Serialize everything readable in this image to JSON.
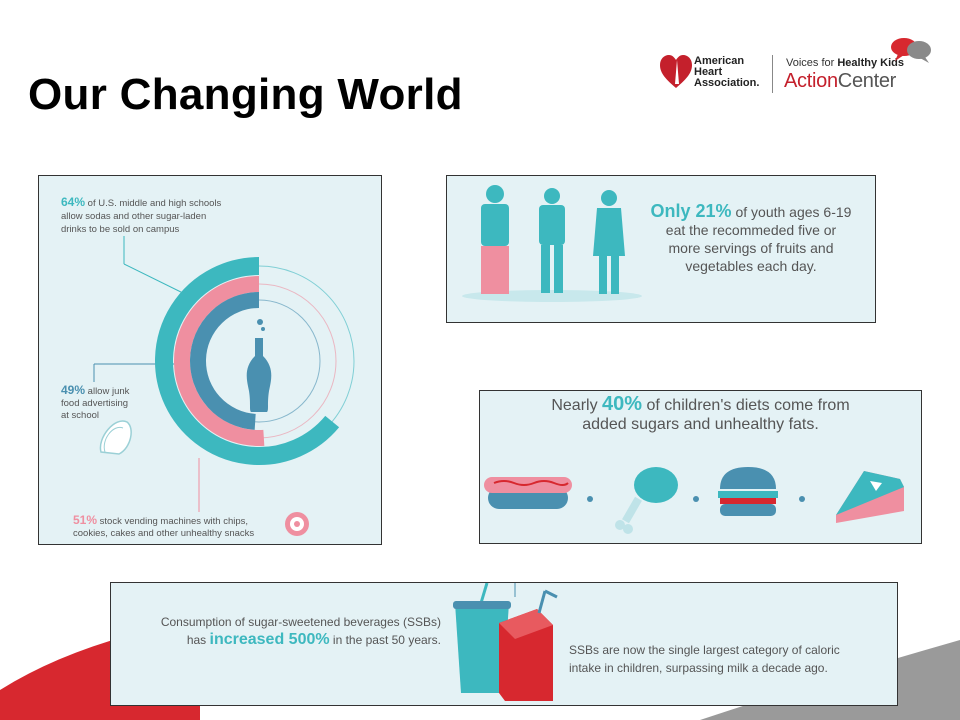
{
  "slide": {
    "title": "Our Changing World"
  },
  "logos": {
    "aha_lines": [
      "American",
      "Heart",
      "Association."
    ],
    "voices_prefix": "Voices for ",
    "voices_bold": "Healthy Kids",
    "action_1": "Action",
    "action_2": "Center"
  },
  "panel1": {
    "stat1_pct": "64%",
    "stat1_text_1": " of U.S. middle and high schools",
    "stat1_text_2": "allow sodas and other sugar-laden",
    "stat1_text_3": "drinks to be sold on campus",
    "stat2_pct": "49%",
    "stat2_text_1": " allow junk",
    "stat2_text_2": "food advertising",
    "stat2_text_3": "at school",
    "stat3_pct": "51%",
    "stat3_text_1": " stock vending machines with chips,",
    "stat3_text_2": "cookies, cakes and other unhealthy snacks",
    "rings": [
      0.64,
      0.51,
      0.49
    ]
  },
  "panel2": {
    "pct": "Only 21%",
    "line1": " of youth ages 6-19",
    "line2": "eat the recommeded five or",
    "line3": "more servings of fruits and",
    "line4": "vegetables each day.",
    "fraction": 0.21
  },
  "panel3": {
    "prefix": "Nearly ",
    "pct": "40%",
    "line1": " of children's diets come from",
    "line2": "added sugars and unhealthy fats."
  },
  "panel4": {
    "left_line1": "Consumption of sugar-sweetened beverages (SSBs)",
    "left_line2_a": "has ",
    "left_line2_b": "increased 500%",
    "left_line2_c": " in the past 50 years.",
    "right_line1": "SSBs are now the single largest category of caloric",
    "right_line2": "intake in children, surpassing milk a decade ago."
  },
  "colors": {
    "teal": "#3db8bf",
    "pink": "#ef8fa0",
    "blue": "#4a90b0",
    "red": "#d7282f"
  }
}
